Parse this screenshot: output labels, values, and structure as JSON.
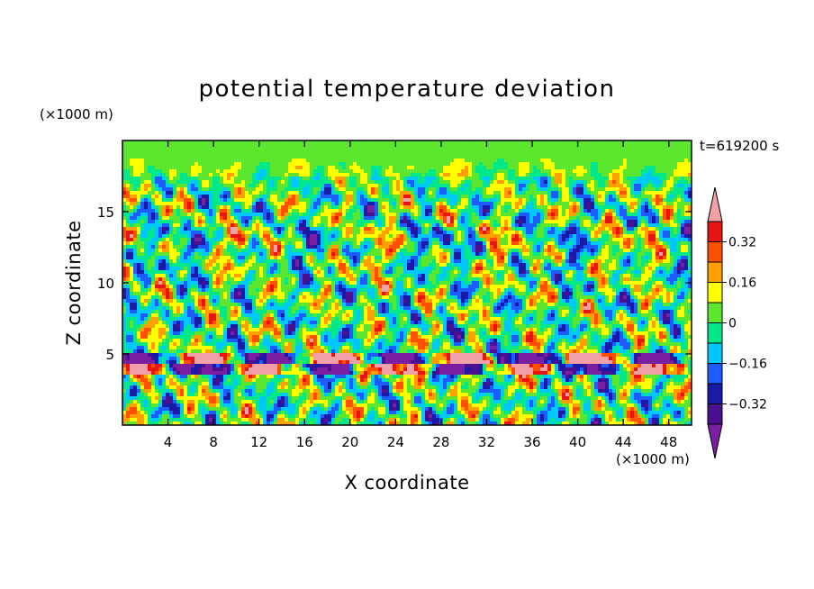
{
  "chart_data": {
    "type": "heatmap",
    "title": "potential temperature deviation",
    "xlabel": "X coordinate",
    "ylabel": "Z coordinate",
    "x_unit": "(×1000 m)",
    "z_unit": "(×1000 m)",
    "time_label": "t=619200 s",
    "xlim": [
      0,
      50
    ],
    "ylim": [
      0,
      20
    ],
    "x_ticks": [
      4,
      8,
      12,
      16,
      20,
      24,
      28,
      32,
      36,
      40,
      44,
      48
    ],
    "x_tick_labels": [
      "4",
      "8",
      "12",
      "16",
      "20",
      "24",
      "28",
      "32",
      "36",
      "40",
      "44",
      "48"
    ],
    "y_ticks": [
      5,
      10,
      15
    ],
    "y_tick_labels": [
      "5",
      "10",
      "15"
    ],
    "colorbar": {
      "levels": [
        -0.4,
        -0.32,
        -0.24,
        -0.16,
        -0.08,
        0,
        0.08,
        0.16,
        0.24,
        0.32,
        0.4
      ],
      "colors": [
        "#7a1fa2",
        "#4b0f8f",
        "#1a1aa6",
        "#1e5cff",
        "#00c8ff",
        "#00e88a",
        "#5ce62e",
        "#ffff00",
        "#ffa000",
        "#ff5000",
        "#e81414",
        "#f2a0a8"
      ],
      "labeled_values": [
        0.32,
        0.16,
        0,
        -0.16,
        -0.32
      ],
      "tick_labels": [
        "0.32",
        "0.16",
        "0",
        "−0.16",
        "−0.32"
      ]
    }
  },
  "labels": {
    "title": "potential temperature deviation",
    "x_unit_top": "(×1000 m)",
    "x_unit_bottom": "(×1000 m)",
    "time": "t=619200 s",
    "xlabel": "X coordinate",
    "ylabel": "Z coordinate"
  }
}
